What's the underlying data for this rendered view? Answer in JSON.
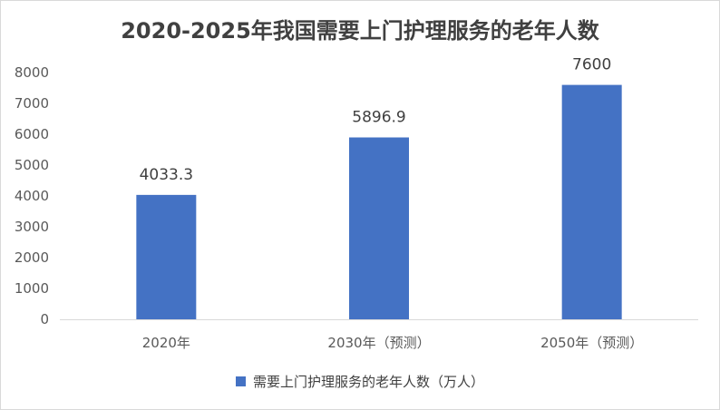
{
  "chart_data": {
    "type": "bar",
    "title": "2020-2025年我国需要上门护理服务的老年人数",
    "categories": [
      "2020年",
      "2030年（预测）",
      "2050年（预测）"
    ],
    "series": [
      {
        "name": "需要上门护理服务的老年人数（万人）",
        "values": [
          4033.3,
          5896.9,
          7600
        ],
        "data_labels": [
          "4033.3",
          "5896.9",
          "7600"
        ],
        "color": "#4472C4"
      }
    ],
    "ylim": [
      0,
      8000
    ],
    "yticks": [
      0,
      1000,
      2000,
      3000,
      4000,
      5000,
      6000,
      7000,
      8000
    ],
    "grid": false,
    "legend_position": "bottom"
  }
}
